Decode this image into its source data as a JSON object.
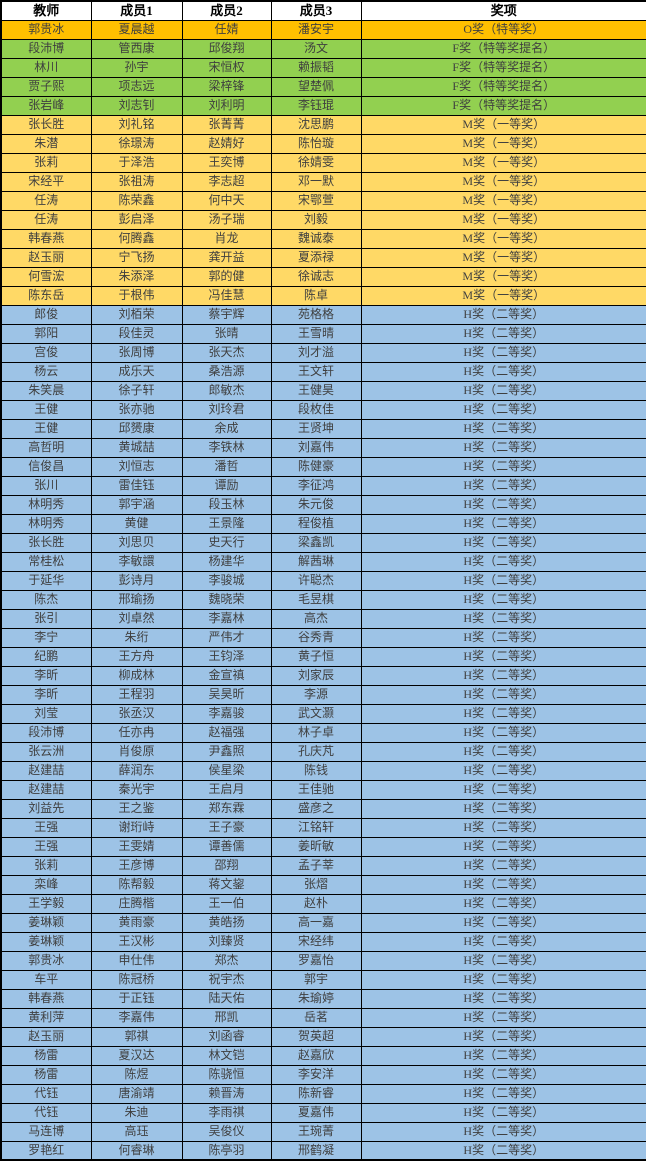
{
  "colors": {
    "outstanding_orange": "#FFC000",
    "finalist_green": "#92D050",
    "meritorious_yellow": "#FFD966",
    "honorable_blue": "#9DC3E6",
    "header_bg": "#FFFFFF",
    "grid_border": "#000000",
    "cell_text": "#3F3F3F"
  },
  "table": {
    "columns": [
      "教师",
      "成员1",
      "成员2",
      "成员3",
      "奖项"
    ],
    "rows": [
      [
        "郭贵冰",
        "夏晨越",
        "任婧",
        "潘安宇",
        "O奖（特等奖）",
        "outstanding_orange"
      ],
      [
        "段沛博",
        "管西康",
        "邱俊翔",
        "汤文",
        "F奖（特等奖提名）",
        "finalist_green"
      ],
      [
        "林川",
        "孙宇",
        "宋恒权",
        "赖振韬",
        "F奖（特等奖提名）",
        "finalist_green"
      ],
      [
        "贾子熙",
        "项志远",
        "梁梓锋",
        "望楚佩",
        "F奖（特等奖提名）",
        "finalist_green"
      ],
      [
        "张岩峰",
        "刘志钊",
        "刘利明",
        "李钰琨",
        "F奖（特等奖提名）",
        "finalist_green"
      ],
      [
        "张长胜",
        "刘礼铭",
        "张菁菁",
        "沈思鹏",
        "M奖（一等奖）",
        "meritorious_yellow"
      ],
      [
        "朱潜",
        "徐璟涛",
        "赵婧好",
        "陈怡璇",
        "M奖（一等奖）",
        "meritorious_yellow"
      ],
      [
        "张莉",
        "于泽浩",
        "王奕博",
        "徐婧雯",
        "M奖（一等奖）",
        "meritorious_yellow"
      ],
      [
        "宋经平",
        "张祖涛",
        "李志超",
        "邓一默",
        "M奖（一等奖）",
        "meritorious_yellow"
      ],
      [
        "任涛",
        "陈荣鑫",
        "何中天",
        "宋鄂萱",
        "M奖（一等奖）",
        "meritorious_yellow"
      ],
      [
        "任涛",
        "彭启泽",
        "汤子瑞",
        "刘毅",
        "M奖（一等奖）",
        "meritorious_yellow"
      ],
      [
        "韩春燕",
        "何腾鑫",
        "肖龙",
        "魏诚泰",
        "M奖（一等奖）",
        "meritorious_yellow"
      ],
      [
        "赵玉丽",
        "宁飞扬",
        "龚开益",
        "夏添禄",
        "M奖（一等奖）",
        "meritorious_yellow"
      ],
      [
        "何雪浤",
        "朱添泽",
        "郭的健",
        "徐诚志",
        "M奖（一等奖）",
        "meritorious_yellow"
      ],
      [
        "陈东岳",
        "于根伟",
        "冯佳慧",
        "陈卓",
        "M奖（一等奖）",
        "meritorious_yellow"
      ],
      [
        "郎俊",
        "刘栢荣",
        "蔡宇辉",
        "苑格格",
        "H奖（二等奖）",
        "honorable_blue"
      ],
      [
        "郭阳",
        "段佳灵",
        "张晴",
        "王雪晴",
        "H奖（二等奖）",
        "honorable_blue"
      ],
      [
        "宫俊",
        "张周博",
        "张天杰",
        "刘才溢",
        "H奖（二等奖）",
        "honorable_blue"
      ],
      [
        "杨云",
        "成乐天",
        "桑浩源",
        "王文轩",
        "H奖（二等奖）",
        "honorable_blue"
      ],
      [
        "朱笑晨",
        "徐子轩",
        "郎敏杰",
        "王健昊",
        "H奖（二等奖）",
        "honorable_blue"
      ],
      [
        "王健",
        "张亦驰",
        "刘玲君",
        "段枚佳",
        "H奖（二等奖）",
        "honorable_blue"
      ],
      [
        "王健",
        "邱赟康",
        "余成",
        "王贤坤",
        "H奖（二等奖）",
        "honorable_blue"
      ],
      [
        "高哲明",
        "黄城喆",
        "李铁林",
        "刘嘉伟",
        "H奖（二等奖）",
        "honorable_blue"
      ],
      [
        "信俊昌",
        "刘恒志",
        "潘哲",
        "陈健豪",
        "H奖（二等奖）",
        "honorable_blue"
      ],
      [
        "张川",
        "雷佳钰",
        "谭励",
        "李征鸿",
        "H奖（二等奖）",
        "honorable_blue"
      ],
      [
        "林明秀",
        "郭宇涵",
        "段玉林",
        "朱元俊",
        "H奖（二等奖）",
        "honorable_blue"
      ],
      [
        "林明秀",
        "黄健",
        "王景隆",
        "程俊植",
        "H奖（二等奖）",
        "honorable_blue"
      ],
      [
        "张长胜",
        "刘思贝",
        "史天行",
        "梁鑫凯",
        "H奖（二等奖）",
        "honorable_blue"
      ],
      [
        "常桂松",
        "李敏譞",
        "杨建华",
        "解茜琳",
        "H奖（二等奖）",
        "honorable_blue"
      ],
      [
        "于延华",
        "彭诗月",
        "李骏城",
        "许聪杰",
        "H奖（二等奖）",
        "honorable_blue"
      ],
      [
        "陈杰",
        "邢瑜扬",
        "魏晓荣",
        "毛昱棋",
        "H奖（二等奖）",
        "honorable_blue"
      ],
      [
        "张引",
        "刘卓然",
        "李嘉林",
        "高杰",
        "H奖（二等奖）",
        "honorable_blue"
      ],
      [
        "李宁",
        "朱绗",
        "严伟才",
        "谷秀青",
        "H奖（二等奖）",
        "honorable_blue"
      ],
      [
        "纪鹏",
        "王方舟",
        "王钧泽",
        "黄子恒",
        "H奖（二等奖）",
        "honorable_blue"
      ],
      [
        "李昕",
        "柳成林",
        "金宣禛",
        "刘家辰",
        "H奖（二等奖）",
        "honorable_blue"
      ],
      [
        "李昕",
        "王程羽",
        "吴昊昕",
        "李源",
        "H奖（二等奖）",
        "honorable_blue"
      ],
      [
        "刘莹",
        "张丞汉",
        "李嘉骏",
        "武文灏",
        "H奖（二等奖）",
        "honorable_blue"
      ],
      [
        "段沛博",
        "任亦冉",
        "赵福强",
        "林子卓",
        "H奖（二等奖）",
        "honorable_blue"
      ],
      [
        "张云洲",
        "肖俊原",
        "尹鑫照",
        "孔庆芃",
        "H奖（二等奖）",
        "honorable_blue"
      ],
      [
        "赵建喆",
        "薛润东",
        "侯星梁",
        "陈钱",
        "H奖（二等奖）",
        "honorable_blue"
      ],
      [
        "赵建喆",
        "秦光宇",
        "王启月",
        "王佳驰",
        "H奖（二等奖）",
        "honorable_blue"
      ],
      [
        "刘益先",
        "王之鉴",
        "郑东霖",
        "盛彦之",
        "H奖（二等奖）",
        "honorable_blue"
      ],
      [
        "王强",
        "谢珩峙",
        "王子豪",
        "江铭轩",
        "H奖（二等奖）",
        "honorable_blue"
      ],
      [
        "王强",
        "王雯婧",
        "谭善儒",
        "姜昕敏",
        "H奖（二等奖）",
        "honorable_blue"
      ],
      [
        "张莉",
        "王彦博",
        "邵翔",
        "孟子莘",
        "H奖（二等奖）",
        "honorable_blue"
      ],
      [
        "栾峰",
        "陈帮毅",
        "蒋文鋆",
        "张熠",
        "H奖（二等奖）",
        "honorable_blue"
      ],
      [
        "王学毅",
        "庄腾楷",
        "王一伯",
        "赵朴",
        "H奖（二等奖）",
        "honorable_blue"
      ],
      [
        "姜琳颖",
        "黄雨豪",
        "黄皓扬",
        "高一嘉",
        "H奖（二等奖）",
        "honorable_blue"
      ],
      [
        "姜琳颖",
        "王汉彬",
        "刘臻贤",
        "宋经纬",
        "H奖（二等奖）",
        "honorable_blue"
      ],
      [
        "郭贵冰",
        "申仕伟",
        "郑杰",
        "罗嘉怡",
        "H奖（二等奖）",
        "honorable_blue"
      ],
      [
        "车平",
        "陈冠桥",
        "祝宇杰",
        "郭宇",
        "H奖（二等奖）",
        "honorable_blue"
      ],
      [
        "韩春燕",
        "于正钰",
        "陆天佑",
        "朱瑜婷",
        "H奖（二等奖）",
        "honorable_blue"
      ],
      [
        "黄利萍",
        "李嘉伟",
        "邢凯",
        "岳茗",
        "H奖（二等奖）",
        "honorable_blue"
      ],
      [
        "赵玉丽",
        "郭祺",
        "刘函睿",
        "贺英超",
        "H奖（二等奖）",
        "honorable_blue"
      ],
      [
        "杨雷",
        "夏汉达",
        "林文铠",
        "赵嘉欣",
        "H奖（二等奖）",
        "honorable_blue"
      ],
      [
        "杨雷",
        "陈煜",
        "陈骁恒",
        "李安洋",
        "H奖（二等奖）",
        "honorable_blue"
      ],
      [
        "代钰",
        "唐渝靖",
        "赖晋涛",
        "陈新睿",
        "H奖（二等奖）",
        "honorable_blue"
      ],
      [
        "代钰",
        "朱迪",
        "李雨祺",
        "夏嘉伟",
        "H奖（二等奖）",
        "honorable_blue"
      ],
      [
        "马连博",
        "高珏",
        "吴俊仪",
        "王琬菁",
        "H奖（二等奖）",
        "honorable_blue"
      ],
      [
        "罗艳红",
        "何睿琳",
        "陈亭羽",
        "邢鹤凝",
        "H奖（二等奖）",
        "honorable_blue"
      ]
    ]
  }
}
